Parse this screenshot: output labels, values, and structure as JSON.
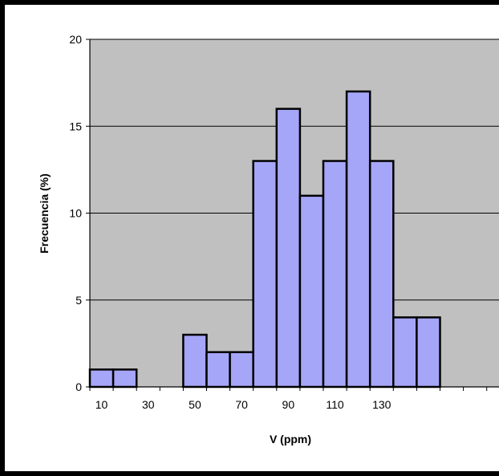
{
  "chart_data": {
    "type": "bar",
    "variant": "histogram",
    "xlabel": "V (ppm)",
    "ylabel": "Frecuencia (%)",
    "ylim": [
      0,
      20
    ],
    "y_ticks": [
      "0",
      "5",
      "10",
      "15",
      "20"
    ],
    "x_tick_labels": [
      "10",
      "30",
      "50",
      "70",
      "90",
      "110",
      "130"
    ],
    "bins": [
      {
        "x": 10,
        "value": 1
      },
      {
        "x": 20,
        "value": 1
      },
      {
        "x": 30,
        "value": 0
      },
      {
        "x": 40,
        "value": 0
      },
      {
        "x": 50,
        "value": 3
      },
      {
        "x": 60,
        "value": 2
      },
      {
        "x": 70,
        "value": 2
      },
      {
        "x": 80,
        "value": 13
      },
      {
        "x": 90,
        "value": 16
      },
      {
        "x": 100,
        "value": 11
      },
      {
        "x": 110,
        "value": 13
      },
      {
        "x": 120,
        "value": 17
      },
      {
        "x": 130,
        "value": 13
      },
      {
        "x": 140,
        "value": 4
      },
      {
        "x": 150,
        "value": 4
      },
      {
        "x": 160,
        "value": 0
      },
      {
        "x": 170,
        "value": 0
      }
    ],
    "grid": true,
    "legend": false,
    "colors": {
      "bar_fill": "#a6a6f8",
      "bar_stroke": "#000000",
      "plot_background": "#c0c0c0",
      "gridline": "#000000",
      "frame": "#000000"
    }
  }
}
